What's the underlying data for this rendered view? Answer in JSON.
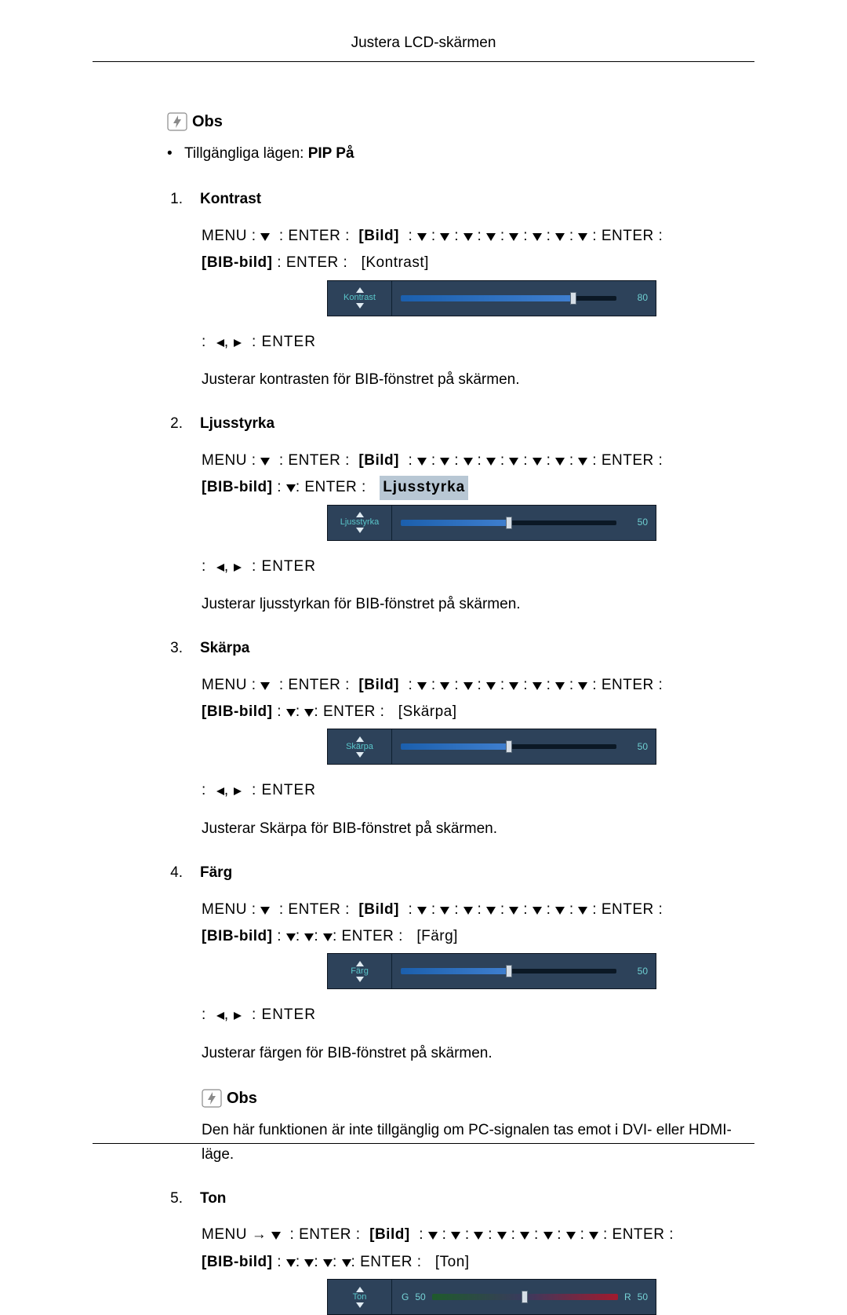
{
  "headerTitle": "Justera LCD-skärmen",
  "obsLabel": "Obs",
  "bulletPrefix": "Tillgängliga lägen: ",
  "bulletBold": "PIP På",
  "labels": {
    "menu": "MENU",
    "enter": "ENTER",
    "bild": "[Bild]",
    "bib": "[BIB-bild]"
  },
  "colors": {
    "osdBg": "#2d425a",
    "osdText": "#59c5c9",
    "trackBg": "#0b1825",
    "fillBlue": "#1b5fad",
    "fillBlueLight": "#3f7fcf",
    "tonGradFrom": "#1f5a2c",
    "tonGradMid": "#3a3a5e",
    "tonGradTo": "#a11a2e"
  },
  "items": [
    {
      "idx": "1.",
      "title": "Kontrast",
      "bracket": "[Kontrast]",
      "downCount": 0,
      "osd": {
        "label": "Kontrast",
        "value": 80,
        "highlight": false
      },
      "desc": "Justerar kontrasten för BIB-fönstret på skärmen."
    },
    {
      "idx": "2.",
      "title": "Ljusstyrka",
      "bracket": "Ljusstyrka",
      "downCount": 1,
      "osd": {
        "label": "Ljusstyrka",
        "value": 50,
        "highlight": true
      },
      "desc": "Justerar ljusstyrkan för BIB-fönstret på skärmen."
    },
    {
      "idx": "3.",
      "title": "Skärpa",
      "bracket": "[Skärpa]",
      "downCount": 2,
      "osd": {
        "label": "Skärpa",
        "value": 50,
        "highlight": false
      },
      "desc": "Justerar Skärpa för BIB-fönstret på skärmen."
    },
    {
      "idx": "4.",
      "title": "Färg",
      "bracket": "[Färg]",
      "downCount": 3,
      "osd": {
        "label": "Färg",
        "value": 50,
        "highlight": false
      },
      "desc": "Justerar färgen för BIB-fönstret på skärmen.",
      "obsNote": "Den här funktionen är inte tillgänglig om PC-signalen tas emot i DVI- eller HDMI-läge."
    },
    {
      "idx": "5.",
      "title": "Ton",
      "bracket": "[Ton]",
      "downCount": 4,
      "arrowPrefix": "→",
      "osdTon": {
        "label": "Ton",
        "gLabel": "G",
        "gVal": 50,
        "rLabel": "R",
        "rVal": 50,
        "thumbPos": 50
      }
    }
  ]
}
